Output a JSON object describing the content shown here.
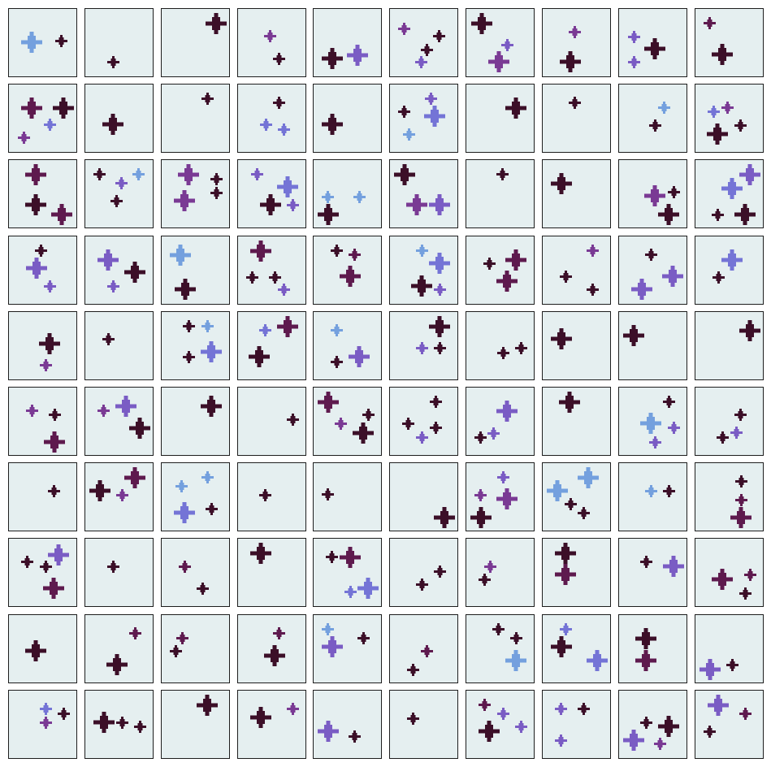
{
  "grid": {
    "rows": 10,
    "cols": 10
  },
  "colors": {
    "cell_background": "#e5eff0",
    "cell_border": "#1e1e1e",
    "maroon": "#3c0f28",
    "plum": "#5e1a4e",
    "purple": "#7a3a94",
    "violet": "#7a5cc4",
    "periwinkle": "#7474d6",
    "sky": "#74a0de"
  },
  "icon": "plus-sparkle-icon",
  "cells": [
    [
      [
        0.33,
        0.48,
        "L",
        "sky"
      ],
      [
        0.76,
        0.46,
        "S",
        "maroon"
      ]
    ],
    [
      [
        0.4,
        0.77,
        "S",
        "maroon"
      ]
    ],
    [
      [
        0.79,
        0.21,
        "L",
        "maroon"
      ]
    ],
    [
      [
        0.47,
        0.39,
        "S",
        "purple"
      ],
      [
        0.59,
        0.72,
        "S",
        "maroon"
      ]
    ],
    [
      [
        0.27,
        0.72,
        "L",
        "maroon"
      ],
      [
        0.64,
        0.67,
        "L",
        "violet"
      ]
    ],
    [
      [
        0.2,
        0.29,
        "S",
        "purple"
      ],
      [
        0.71,
        0.39,
        "S",
        "maroon"
      ],
      [
        0.54,
        0.59,
        "S",
        "maroon"
      ],
      [
        0.45,
        0.77,
        "S",
        "violet"
      ]
    ],
    [
      [
        0.22,
        0.21,
        "L",
        "maroon"
      ],
      [
        0.59,
        0.52,
        "S",
        "violet"
      ],
      [
        0.47,
        0.77,
        "L",
        "purple"
      ]
    ],
    [
      [
        0.46,
        0.34,
        "S",
        "purple"
      ],
      [
        0.4,
        0.77,
        "L",
        "maroon"
      ]
    ],
    [
      [
        0.22,
        0.41,
        "S",
        "violet"
      ],
      [
        0.52,
        0.58,
        "L",
        "maroon"
      ],
      [
        0.22,
        0.77,
        "S",
        "violet"
      ]
    ],
    [
      [
        0.2,
        0.21,
        "S",
        "plum"
      ],
      [
        0.39,
        0.66,
        "L",
        "maroon"
      ]
    ],
    [
      [
        0.33,
        0.34,
        "L",
        "plum"
      ],
      [
        0.79,
        0.34,
        "L",
        "maroon"
      ],
      [
        0.59,
        0.58,
        "S",
        "periwinkle"
      ],
      [
        0.22,
        0.77,
        "S",
        "purple"
      ]
    ],
    [
      [
        0.4,
        0.58,
        "L",
        "maroon"
      ]
    ],
    [
      [
        0.66,
        0.21,
        "S",
        "maroon"
      ]
    ],
    [
      [
        0.59,
        0.27,
        "S",
        "maroon"
      ],
      [
        0.4,
        0.58,
        "S",
        "periwinkle"
      ],
      [
        0.66,
        0.65,
        "S",
        "periwinkle"
      ]
    ],
    [
      [
        0.27,
        0.58,
        "L",
        "maroon"
      ]
    ],
    [
      [
        0.2,
        0.39,
        "S",
        "maroon"
      ],
      [
        0.59,
        0.21,
        "S",
        "violet"
      ],
      [
        0.65,
        0.46,
        "L",
        "periwinkle"
      ],
      [
        0.28,
        0.72,
        "S",
        "sky"
      ]
    ],
    [
      [
        0.72,
        0.34,
        "L",
        "maroon"
      ]
    ],
    [
      [
        0.46,
        0.27,
        "S",
        "maroon"
      ]
    ],
    [
      [
        0.65,
        0.34,
        "S",
        "sky"
      ],
      [
        0.52,
        0.59,
        "S",
        "maroon"
      ]
    ],
    [
      [
        0.27,
        0.39,
        "S",
        "periwinkle"
      ],
      [
        0.47,
        0.34,
        "S",
        "purple"
      ],
      [
        0.65,
        0.59,
        "S",
        "maroon"
      ],
      [
        0.32,
        0.72,
        "L",
        "maroon"
      ]
    ],
    [
      [
        0.39,
        0.21,
        "L",
        "plum"
      ],
      [
        0.39,
        0.65,
        "L",
        "maroon"
      ],
      [
        0.77,
        0.79,
        "L",
        "plum"
      ]
    ],
    [
      [
        0.21,
        0.21,
        "S",
        "maroon"
      ],
      [
        0.52,
        0.34,
        "S",
        "violet"
      ],
      [
        0.77,
        0.21,
        "S",
        "sky"
      ],
      [
        0.45,
        0.59,
        "S",
        "maroon"
      ]
    ],
    [
      [
        0.39,
        0.21,
        "L",
        "purple"
      ],
      [
        0.79,
        0.28,
        "S",
        "maroon"
      ],
      [
        0.33,
        0.59,
        "L",
        "purple"
      ],
      [
        0.79,
        0.48,
        "S",
        "maroon"
      ]
    ],
    [
      [
        0.28,
        0.21,
        "S",
        "violet"
      ],
      [
        0.72,
        0.39,
        "L",
        "periwinkle"
      ],
      [
        0.47,
        0.65,
        "L",
        "maroon"
      ],
      [
        0.79,
        0.65,
        "S",
        "violet"
      ]
    ],
    [
      [
        0.21,
        0.54,
        "S",
        "sky"
      ],
      [
        0.66,
        0.54,
        "S",
        "sky"
      ],
      [
        0.21,
        0.79,
        "L",
        "maroon"
      ]
    ],
    [
      [
        0.21,
        0.21,
        "L",
        "maroon"
      ],
      [
        0.39,
        0.65,
        "L",
        "purple"
      ],
      [
        0.72,
        0.65,
        "L",
        "violet"
      ]
    ],
    [
      [
        0.52,
        0.21,
        "S",
        "maroon"
      ]
    ],
    [
      [
        0.27,
        0.34,
        "L",
        "maroon"
      ]
    ],
    [
      [
        0.52,
        0.52,
        "L",
        "purple"
      ],
      [
        0.79,
        0.46,
        "S",
        "maroon"
      ],
      [
        0.72,
        0.79,
        "L",
        "maroon"
      ]
    ],
    [
      [
        0.79,
        0.21,
        "L",
        "violet"
      ],
      [
        0.53,
        0.41,
        "L",
        "periwinkle"
      ],
      [
        0.32,
        0.79,
        "S",
        "maroon"
      ],
      [
        0.72,
        0.79,
        "L",
        "maroon"
      ]
    ],
    [
      [
        0.46,
        0.21,
        "S",
        "maroon"
      ],
      [
        0.4,
        0.46,
        "L",
        "violet"
      ],
      [
        0.59,
        0.72,
        "S",
        "violet"
      ]
    ],
    [
      [
        0.33,
        0.34,
        "L",
        "violet"
      ],
      [
        0.72,
        0.52,
        "L",
        "maroon"
      ],
      [
        0.4,
        0.72,
        "S",
        "violet"
      ]
    ],
    [
      [
        0.27,
        0.27,
        "L",
        "sky"
      ],
      [
        0.34,
        0.77,
        "L",
        "maroon"
      ]
    ],
    [
      [
        0.33,
        0.21,
        "L",
        "plum"
      ],
      [
        0.21,
        0.59,
        "S",
        "maroon"
      ],
      [
        0.53,
        0.59,
        "S",
        "maroon"
      ],
      [
        0.66,
        0.77,
        "S",
        "violet"
      ]
    ],
    [
      [
        0.33,
        0.21,
        "S",
        "maroon"
      ],
      [
        0.59,
        0.27,
        "S",
        "plum"
      ],
      [
        0.53,
        0.58,
        "L",
        "plum"
      ]
    ],
    [
      [
        0.46,
        0.21,
        "S",
        "sky"
      ],
      [
        0.72,
        0.39,
        "L",
        "periwinkle"
      ],
      [
        0.46,
        0.72,
        "L",
        "maroon"
      ],
      [
        0.72,
        0.77,
        "S",
        "violet"
      ]
    ],
    [
      [
        0.33,
        0.39,
        "S",
        "maroon"
      ],
      [
        0.72,
        0.34,
        "L",
        "plum"
      ],
      [
        0.59,
        0.65,
        "L",
        "plum"
      ]
    ],
    [
      [
        0.72,
        0.21,
        "S",
        "purple"
      ],
      [
        0.33,
        0.58,
        "S",
        "maroon"
      ],
      [
        0.72,
        0.77,
        "S",
        "maroon"
      ]
    ],
    [
      [
        0.46,
        0.27,
        "S",
        "maroon"
      ],
      [
        0.78,
        0.58,
        "L",
        "violet"
      ],
      [
        0.33,
        0.77,
        "L",
        "violet"
      ]
    ],
    [
      [
        0.53,
        0.34,
        "L",
        "periwinkle"
      ],
      [
        0.33,
        0.59,
        "S",
        "maroon"
      ]
    ],
    [
      [
        0.59,
        0.46,
        "L",
        "maroon"
      ],
      [
        0.53,
        0.77,
        "S",
        "purple"
      ]
    ],
    [
      [
        0.33,
        0.39,
        "S",
        "maroon"
      ]
    ],
    [
      [
        0.39,
        0.21,
        "S",
        "maroon"
      ],
      [
        0.66,
        0.21,
        "S",
        "sky"
      ],
      [
        0.39,
        0.65,
        "S",
        "maroon"
      ],
      [
        0.72,
        0.58,
        "L",
        "periwinkle"
      ]
    ],
    [
      [
        0.39,
        0.27,
        "S",
        "periwinkle"
      ],
      [
        0.72,
        0.21,
        "L",
        "plum"
      ],
      [
        0.3,
        0.65,
        "L",
        "maroon"
      ]
    ],
    [
      [
        0.33,
        0.27,
        "S",
        "sky"
      ],
      [
        0.33,
        0.72,
        "S",
        "maroon"
      ],
      [
        0.66,
        0.65,
        "L",
        "violet"
      ]
    ],
    [
      [
        0.72,
        0.21,
        "L",
        "maroon"
      ],
      [
        0.46,
        0.52,
        "S",
        "violet"
      ],
      [
        0.72,
        0.52,
        "S",
        "maroon"
      ]
    ],
    [
      [
        0.53,
        0.59,
        "S",
        "maroon"
      ],
      [
        0.79,
        0.52,
        "S",
        "maroon"
      ]
    ],
    [
      [
        0.27,
        0.39,
        "L",
        "maroon"
      ]
    ],
    [
      [
        0.21,
        0.34,
        "L",
        "maroon"
      ]
    ],
    [
      [
        0.79,
        0.27,
        "L",
        "maroon"
      ]
    ],
    [
      [
        0.33,
        0.34,
        "S",
        "purple"
      ],
      [
        0.66,
        0.39,
        "S",
        "maroon"
      ],
      [
        0.66,
        0.79,
        "L",
        "plum"
      ]
    ],
    [
      [
        0.27,
        0.34,
        "S",
        "purple"
      ],
      [
        0.59,
        0.27,
        "L",
        "violet"
      ],
      [
        0.79,
        0.59,
        "L",
        "maroon"
      ]
    ],
    [
      [
        0.72,
        0.27,
        "L",
        "maroon"
      ]
    ],
    [
      [
        0.79,
        0.46,
        "S",
        "maroon"
      ]
    ],
    [
      [
        0.21,
        0.21,
        "L",
        "plum"
      ],
      [
        0.39,
        0.52,
        "S",
        "purple"
      ],
      [
        0.79,
        0.39,
        "S",
        "maroon"
      ],
      [
        0.72,
        0.66,
        "L",
        "maroon"
      ]
    ],
    [
      [
        0.66,
        0.21,
        "S",
        "maroon"
      ],
      [
        0.27,
        0.52,
        "S",
        "maroon"
      ],
      [
        0.66,
        0.58,
        "S",
        "maroon"
      ],
      [
        0.46,
        0.72,
        "S",
        "violet"
      ]
    ],
    [
      [
        0.59,
        0.34,
        "L",
        "violet"
      ],
      [
        0.21,
        0.72,
        "S",
        "maroon"
      ],
      [
        0.39,
        0.66,
        "S",
        "violet"
      ]
    ],
    [
      [
        0.39,
        0.21,
        "L",
        "maroon"
      ]
    ],
    [
      [
        0.72,
        0.21,
        "S",
        "maroon"
      ],
      [
        0.46,
        0.52,
        "L",
        "sky"
      ],
      [
        0.79,
        0.58,
        "S",
        "violet"
      ],
      [
        0.52,
        0.79,
        "S",
        "violet"
      ]
    ],
    [
      [
        0.65,
        0.39,
        "S",
        "maroon"
      ],
      [
        0.39,
        0.72,
        "S",
        "maroon"
      ],
      [
        0.59,
        0.65,
        "S",
        "violet"
      ]
    ],
    [
      [
        0.65,
        0.4,
        "S",
        "maroon"
      ]
    ],
    [
      [
        0.21,
        0.4,
        "L",
        "maroon"
      ],
      [
        0.72,
        0.21,
        "L",
        "plum"
      ],
      [
        0.53,
        0.46,
        "S",
        "purple"
      ]
    ],
    [
      [
        0.29,
        0.34,
        "S",
        "sky"
      ],
      [
        0.66,
        0.21,
        "S",
        "sky"
      ],
      [
        0.33,
        0.72,
        "L",
        "periwinkle"
      ],
      [
        0.72,
        0.66,
        "S",
        "maroon"
      ]
    ],
    [
      [
        0.39,
        0.47,
        "S",
        "maroon"
      ]
    ],
    [
      [
        0.21,
        0.45,
        "S",
        "maroon"
      ]
    ],
    [
      [
        0.79,
        0.79,
        "L",
        "maroon"
      ]
    ],
    [
      [
        0.53,
        0.21,
        "S",
        "violet"
      ],
      [
        0.21,
        0.46,
        "S",
        "purple"
      ],
      [
        0.59,
        0.52,
        "L",
        "purple"
      ],
      [
        0.21,
        0.79,
        "L",
        "maroon"
      ]
    ],
    [
      [
        0.21,
        0.4,
        "L",
        "sky"
      ],
      [
        0.66,
        0.21,
        "L",
        "sky"
      ],
      [
        0.4,
        0.59,
        "S",
        "maroon"
      ],
      [
        0.59,
        0.72,
        "S",
        "maroon"
      ]
    ],
    [
      [
        0.46,
        0.41,
        "S",
        "sky"
      ],
      [
        0.72,
        0.41,
        "S",
        "maroon"
      ]
    ],
    [
      [
        0.66,
        0.27,
        "S",
        "maroon"
      ],
      [
        0.66,
        0.54,
        "S",
        "plum"
      ],
      [
        0.66,
        0.79,
        "L",
        "plum"
      ]
    ],
    [
      [
        0.27,
        0.34,
        "S",
        "maroon"
      ],
      [
        0.72,
        0.24,
        "L",
        "violet"
      ],
      [
        0.53,
        0.41,
        "S",
        "maroon"
      ],
      [
        0.65,
        0.72,
        "L",
        "plum"
      ]
    ],
    [
      [
        0.4,
        0.41,
        "S",
        "maroon"
      ]
    ],
    [
      [
        0.33,
        0.41,
        "S",
        "plum"
      ],
      [
        0.59,
        0.72,
        "S",
        "maroon"
      ]
    ],
    [
      [
        0.33,
        0.21,
        "L",
        "maroon"
      ]
    ],
    [
      [
        0.27,
        0.27,
        "S",
        "maroon"
      ],
      [
        0.53,
        0.27,
        "L",
        "plum"
      ],
      [
        0.53,
        0.77,
        "S",
        "periwinkle"
      ],
      [
        0.79,
        0.72,
        "L",
        "periwinkle"
      ]
    ],
    [
      [
        0.72,
        0.48,
        "S",
        "maroon"
      ],
      [
        0.46,
        0.66,
        "S",
        "maroon"
      ]
    ],
    [
      [
        0.35,
        0.41,
        "S",
        "purple"
      ],
      [
        0.27,
        0.59,
        "S",
        "maroon"
      ]
    ],
    [
      [
        0.33,
        0.21,
        "L",
        "maroon"
      ],
      [
        0.33,
        0.52,
        "L",
        "plum"
      ]
    ],
    [
      [
        0.39,
        0.34,
        "S",
        "maroon"
      ],
      [
        0.79,
        0.4,
        "L",
        "violet"
      ]
    ],
    [
      [
        0.39,
        0.59,
        "L",
        "plum"
      ],
      [
        0.79,
        0.52,
        "S",
        "plum"
      ],
      [
        0.72,
        0.79,
        "S",
        "maroon"
      ]
    ],
    [
      [
        0.39,
        0.52,
        "L",
        "maroon"
      ]
    ],
    [
      [
        0.72,
        0.27,
        "S",
        "plum"
      ],
      [
        0.46,
        0.72,
        "L",
        "maroon"
      ]
    ],
    [
      [
        0.3,
        0.34,
        "S",
        "plum"
      ],
      [
        0.21,
        0.52,
        "S",
        "maroon"
      ]
    ],
    [
      [
        0.59,
        0.27,
        "S",
        "plum"
      ],
      [
        0.53,
        0.59,
        "L",
        "maroon"
      ]
    ],
    [
      [
        0.21,
        0.21,
        "S",
        "sky"
      ],
      [
        0.27,
        0.46,
        "L",
        "violet"
      ],
      [
        0.72,
        0.34,
        "S",
        "maroon"
      ]
    ],
    [
      [
        0.53,
        0.52,
        "S",
        "plum"
      ],
      [
        0.33,
        0.79,
        "S",
        "maroon"
      ]
    ],
    [
      [
        0.46,
        0.21,
        "S",
        "maroon"
      ],
      [
        0.72,
        0.34,
        "S",
        "maroon"
      ],
      [
        0.72,
        0.66,
        "L",
        "sky"
      ]
    ],
    [
      [
        0.33,
        0.21,
        "S",
        "periwinkle"
      ],
      [
        0.27,
        0.46,
        "L",
        "maroon"
      ],
      [
        0.79,
        0.66,
        "L",
        "periwinkle"
      ]
    ],
    [
      [
        0.39,
        0.34,
        "L",
        "maroon"
      ],
      [
        0.39,
        0.66,
        "L",
        "plum"
      ]
    ],
    [
      [
        0.21,
        0.79,
        "L",
        "violet"
      ],
      [
        0.53,
        0.72,
        "S",
        "maroon"
      ]
    ],
    [
      [
        0.53,
        0.27,
        "S",
        "periwinkle"
      ],
      [
        0.53,
        0.46,
        "S",
        "purple"
      ],
      [
        0.79,
        0.34,
        "S",
        "maroon"
      ]
    ],
    [
      [
        0.27,
        0.46,
        "L",
        "maroon"
      ],
      [
        0.53,
        0.46,
        "S",
        "maroon"
      ],
      [
        0.79,
        0.52,
        "S",
        "maroon"
      ]
    ],
    [
      [
        0.66,
        0.21,
        "L",
        "maroon"
      ]
    ],
    [
      [
        0.33,
        0.39,
        "L",
        "maroon"
      ],
      [
        0.79,
        0.27,
        "S",
        "purple"
      ]
    ],
    [
      [
        0.21,
        0.59,
        "L",
        "violet"
      ],
      [
        0.59,
        0.66,
        "S",
        "maroon"
      ]
    ],
    [
      [
        0.33,
        0.41,
        "S",
        "maroon"
      ]
    ],
    [
      [
        0.27,
        0.21,
        "S",
        "plum"
      ],
      [
        0.53,
        0.34,
        "S",
        "violet"
      ],
      [
        0.33,
        0.59,
        "L",
        "maroon"
      ],
      [
        0.79,
        0.52,
        "S",
        "violet"
      ]
    ],
    [
      [
        0.27,
        0.27,
        "S",
        "violet"
      ],
      [
        0.59,
        0.27,
        "S",
        "maroon"
      ],
      [
        0.27,
        0.72,
        "S",
        "violet"
      ]
    ],
    [
      [
        0.39,
        0.46,
        "S",
        "maroon"
      ],
      [
        0.72,
        0.52,
        "L",
        "maroon"
      ],
      [
        0.21,
        0.72,
        "L",
        "violet"
      ],
      [
        0.59,
        0.77,
        "S",
        "purple"
      ]
    ],
    [
      [
        0.33,
        0.21,
        "L",
        "violet"
      ],
      [
        0.72,
        0.34,
        "S",
        "plum"
      ],
      [
        0.21,
        0.59,
        "S",
        "maroon"
      ]
    ]
  ]
}
